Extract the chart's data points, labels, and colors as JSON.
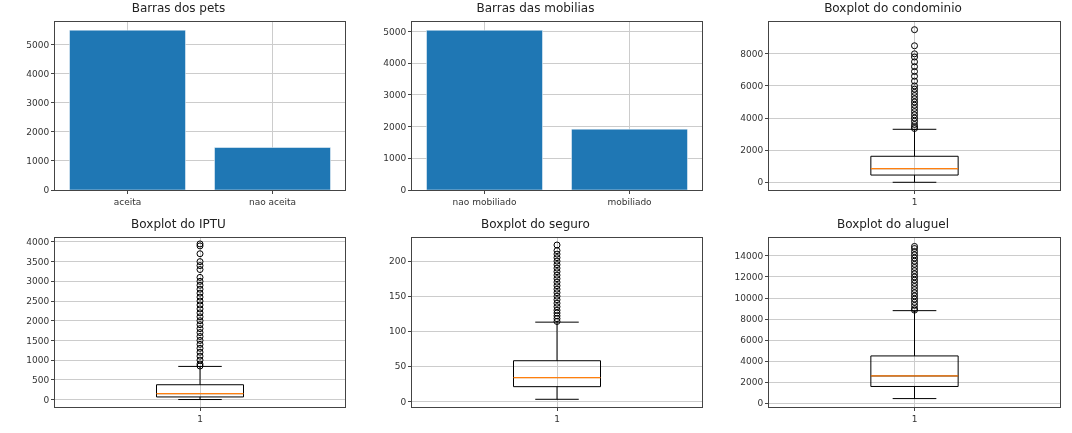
{
  "chart_data": [
    {
      "type": "bar",
      "title": "Barras dos pets",
      "categories": [
        "aceita",
        "nao aceita"
      ],
      "values": [
        5490,
        1460
      ],
      "color": "#1f77b4",
      "ylim": [
        0,
        5770
      ],
      "yticks": [
        0,
        1000,
        2000,
        3000,
        4000,
        5000
      ],
      "grid": true
    },
    {
      "type": "bar",
      "title": "Barras das mobilias",
      "categories": [
        "nao mobiliado",
        "mobiliado"
      ],
      "values": [
        5040,
        1920
      ],
      "color": "#1f77b4",
      "ylim": [
        0,
        5300
      ],
      "yticks": [
        0,
        1000,
        2000,
        3000,
        4000,
        5000
      ],
      "grid": true
    },
    {
      "type": "box",
      "title": "Boxplot do condominio",
      "categories": [
        "1"
      ],
      "boxes": [
        {
          "low": 0,
          "q1": 450,
          "median": 850,
          "q3": 1620,
          "high": 3300,
          "outliers": [
            3350,
            3450,
            3600,
            3800,
            4000,
            4200,
            4400,
            4600,
            4800,
            5000,
            5200,
            5400,
            5600,
            5800,
            6000,
            6300,
            6600,
            6900,
            7200,
            7500,
            7800,
            8000,
            8500,
            9500
          ]
        }
      ],
      "ylim": [
        -480,
        9980
      ],
      "yticks": [
        0,
        2000,
        4000,
        6000,
        8000
      ],
      "grid": true
    },
    {
      "type": "box",
      "title": "Boxplot do IPTU",
      "categories": [
        "1"
      ],
      "boxes": [
        {
          "low": 0,
          "q1": 65,
          "median": 150,
          "q3": 375,
          "high": 840,
          "outliers": [
            850,
            900,
            1000,
            1100,
            1200,
            1300,
            1400,
            1500,
            1600,
            1700,
            1800,
            1900,
            2000,
            2100,
            2200,
            2300,
            2400,
            2500,
            2600,
            2700,
            2800,
            2900,
            3000,
            3100,
            3300,
            3400,
            3500,
            3700,
            3900,
            3950
          ]
        }
      ],
      "ylim": [
        -190,
        4100
      ],
      "yticks": [
        0,
        500,
        1000,
        1500,
        2000,
        2500,
        3000,
        3500,
        4000
      ],
      "grid": true
    },
    {
      "type": "box",
      "title": "Boxplot do seguro",
      "categories": [
        "1"
      ],
      "boxes": [
        {
          "low": 3,
          "q1": 21,
          "median": 34,
          "q3": 58,
          "high": 113,
          "outliers": [
            114,
            118,
            122,
            126,
            130,
            135,
            140,
            145,
            150,
            155,
            160,
            165,
            170,
            175,
            180,
            185,
            190,
            195,
            200,
            205,
            210,
            215,
            223
          ]
        }
      ],
      "ylim": [
        -8,
        233
      ],
      "yticks": [
        0,
        50,
        100,
        150,
        200
      ],
      "grid": true
    },
    {
      "type": "box",
      "title": "Boxplot do aluguel",
      "categories": [
        "1"
      ],
      "boxes": [
        {
          "low": 450,
          "q1": 1600,
          "median": 2600,
          "q3": 4500,
          "high": 8800,
          "outliers": [
            8850,
            9000,
            9300,
            9600,
            9900,
            10200,
            10500,
            10800,
            11100,
            11400,
            11700,
            12000,
            12300,
            12600,
            12900,
            13200,
            13500,
            13800,
            14100,
            14400,
            14700,
            14900
          ]
        }
      ],
      "ylim": [
        -350,
        15700
      ],
      "yticks": [
        0,
        2000,
        4000,
        6000,
        8000,
        10000,
        12000,
        14000
      ],
      "grid": true
    }
  ]
}
